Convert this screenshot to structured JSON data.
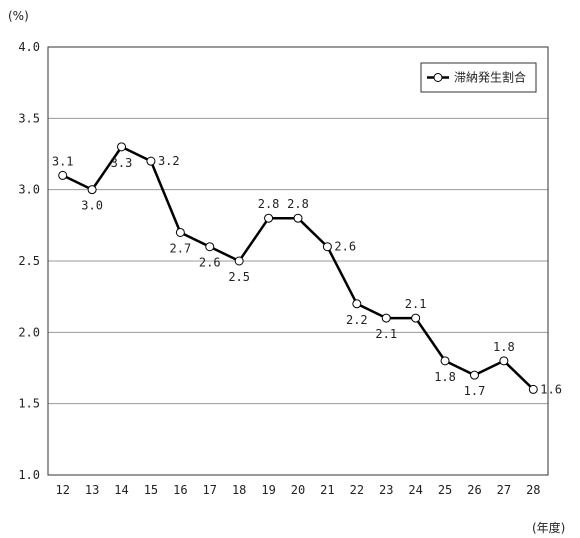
{
  "chart_data": {
    "type": "line",
    "ylabel_unit": "(%)",
    "xlabel_unit": "(年度)",
    "categories": [
      "12",
      "13",
      "14",
      "15",
      "16",
      "17",
      "18",
      "19",
      "20",
      "21",
      "22",
      "23",
      "24",
      "25",
      "26",
      "27",
      "28"
    ],
    "series": [
      {
        "name": "滞納発生割合",
        "values": [
          3.1,
          3.0,
          3.3,
          3.2,
          2.7,
          2.6,
          2.5,
          2.8,
          2.8,
          2.6,
          2.2,
          2.1,
          2.1,
          1.8,
          1.7,
          1.8,
          1.6
        ],
        "labels": [
          "3.1",
          "3.0",
          "3.3",
          "3.2",
          "2.7",
          "2.6",
          "2.5",
          "2.8",
          "2.8",
          "2.6",
          "2.2",
          "2.1",
          "2.1",
          "1.8",
          "1.7",
          "1.8",
          "1.6"
        ],
        "color": "#000000",
        "marker": "open-circle"
      }
    ],
    "yticks": [
      "1.0",
      "1.5",
      "2.0",
      "2.5",
      "3.0",
      "3.5",
      "4.0"
    ],
    "ylim": [
      1.0,
      4.0
    ],
    "grid": true,
    "legend_position": "top-right"
  }
}
